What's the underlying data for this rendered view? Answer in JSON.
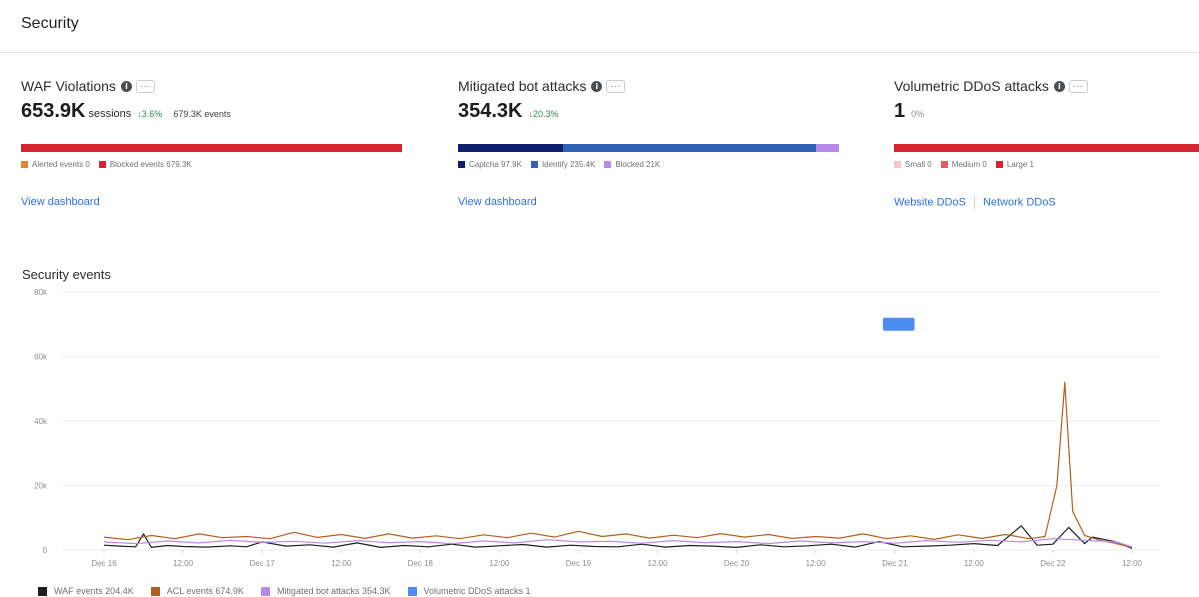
{
  "header": {
    "title": "Security"
  },
  "waf": {
    "title": "WAF Violations",
    "value": "653.9K",
    "unit": "sessions",
    "delta": "↓3.6%",
    "events": "679.3K events",
    "legend": [
      {
        "label": "Alerted events 0",
        "color": "#e8842f"
      },
      {
        "label": "Blocked events 679.3K",
        "color": "#d62430"
      }
    ],
    "bar_segments": [
      {
        "fraction": 1.0,
        "color": "#d62430"
      }
    ],
    "link": "View dashboard"
  },
  "bots": {
    "title": "Mitigated bot attacks",
    "value": "354.3K",
    "delta": "↓20.3%",
    "legend": [
      {
        "label": "Captcha 97.9K",
        "color": "#0e1f6b"
      },
      {
        "label": "Identify 235.4K",
        "color": "#2f62b0"
      },
      {
        "label": "Blocked 21K",
        "color": "#b88ae8"
      }
    ],
    "bar_segments": [
      {
        "fraction": 0.276,
        "color": "#0e1f6b"
      },
      {
        "fraction": 0.664,
        "color": "#2f62b0"
      },
      {
        "fraction": 0.06,
        "color": "#b88ae8"
      }
    ],
    "link": "View dashboard"
  },
  "ddos": {
    "title": "Volumetric DDoS attacks",
    "value": "1",
    "delta": "0%",
    "legend": [
      {
        "label": "Small 0",
        "color": "#f2c6cb"
      },
      {
        "label": "Medium 0",
        "color": "#ea5a64"
      },
      {
        "label": "Large 1",
        "color": "#d62430"
      }
    ],
    "bar_segments": [
      {
        "fraction": 1.0,
        "color": "#d62430"
      }
    ],
    "links": [
      "Website DDoS",
      "Network DDoS"
    ]
  },
  "events_section": {
    "title": "Security events"
  },
  "chart_data": {
    "type": "line",
    "y_ticks": [
      "80k",
      "60k",
      "40k",
      "20k",
      "0"
    ],
    "ylim": [
      0,
      80000
    ],
    "grid": true,
    "x_ticks": [
      "Dec 16",
      "12:00",
      "Dec 17",
      "12:00",
      "Dec 18",
      "12:00",
      "Dec 19",
      "12:00",
      "Dec 20",
      "12:00",
      "Dec 21",
      "12:00",
      "Dec 22",
      "12:00"
    ],
    "x_range": [
      0,
      13
    ],
    "series": [
      {
        "name": "WAF events 204.4K",
        "color": "#1d1f20",
        "x": [
          0,
          0.2,
          0.4,
          0.5,
          0.6,
          0.8,
          1,
          1.3,
          1.6,
          1.8,
          2,
          2.3,
          2.6,
          2.9,
          3.2,
          3.5,
          3.8,
          4.1,
          4.4,
          4.7,
          5,
          5.3,
          5.6,
          5.9,
          6.2,
          6.5,
          6.8,
          7.1,
          7.4,
          7.7,
          8,
          8.3,
          8.6,
          8.9,
          9.2,
          9.5,
          9.8,
          10.1,
          10.4,
          10.7,
          11,
          11.3,
          11.6,
          11.8,
          12,
          12.2,
          12.4,
          12.5,
          12.6,
          12.8,
          13
        ],
        "y": [
          1500,
          1200,
          1000,
          5000,
          800,
          1400,
          1100,
          900,
          1300,
          1000,
          2500,
          1200,
          1600,
          900,
          2200,
          800,
          1400,
          1000,
          1800,
          900,
          1300,
          1700,
          900,
          1500,
          1100,
          1000,
          1800,
          900,
          1400,
          1200,
          800,
          1600,
          1000,
          1300,
          1800,
          900,
          2600,
          1000,
          1200,
          1500,
          2000,
          1400,
          7500,
          1500,
          1800,
          7000,
          2000,
          4000,
          3500,
          2500,
          500
        ]
      },
      {
        "name": "ACL events 674.9K",
        "color": "#b45f1f",
        "x": [
          0,
          0.3,
          0.6,
          0.9,
          1.2,
          1.5,
          1.8,
          2.1,
          2.4,
          2.7,
          3,
          3.3,
          3.6,
          3.9,
          4.2,
          4.5,
          4.8,
          5.1,
          5.4,
          5.7,
          6,
          6.3,
          6.6,
          6.9,
          7.2,
          7.5,
          7.8,
          8.1,
          8.4,
          8.7,
          9,
          9.3,
          9.6,
          9.9,
          10.2,
          10.5,
          10.8,
          11.1,
          11.4,
          11.7,
          11.9,
          12.05,
          12.15,
          12.25,
          12.4,
          12.6,
          12.8,
          13
        ],
        "y": [
          4000,
          3200,
          4500,
          3500,
          5000,
          3800,
          4200,
          3500,
          5500,
          3900,
          4800,
          3600,
          5000,
          3700,
          4400,
          3500,
          4700,
          3800,
          5200,
          4000,
          5800,
          4200,
          5000,
          3700,
          4600,
          3800,
          5100,
          4000,
          4800,
          3600,
          4200,
          3700,
          5000,
          3500,
          4400,
          3300,
          4700,
          3600,
          4800,
          3500,
          4200,
          20000,
          52000,
          12000,
          4500,
          3000,
          2000,
          800
        ]
      },
      {
        "name": "Mitigated bot attacks 354.3K",
        "color": "#b88ae8",
        "x": [
          0,
          0.4,
          0.8,
          1.2,
          1.6,
          2,
          2.4,
          2.8,
          3.2,
          3.6,
          4,
          4.4,
          4.8,
          5.2,
          5.6,
          6,
          6.4,
          6.8,
          7.2,
          7.6,
          8,
          8.4,
          8.8,
          9.2,
          9.6,
          10,
          10.4,
          10.8,
          11.2,
          11.6,
          12,
          12.4,
          12.8,
          13
        ],
        "y": [
          2500,
          2000,
          2800,
          2200,
          3000,
          2400,
          2700,
          2100,
          2900,
          2300,
          2600,
          2000,
          2800,
          2200,
          3200,
          2500,
          2700,
          2100,
          2900,
          2300,
          2600,
          2000,
          2800,
          2200,
          2600,
          2100,
          2900,
          2400,
          3000,
          2500,
          3500,
          3000,
          2500,
          1000
        ]
      },
      {
        "name": "Volumetric DDoS attacks 1",
        "color": "#4c8df0",
        "marker": {
          "x_start": 9.85,
          "x_end": 10.25,
          "y_low": 68000,
          "y_high": 72000
        }
      }
    ]
  }
}
